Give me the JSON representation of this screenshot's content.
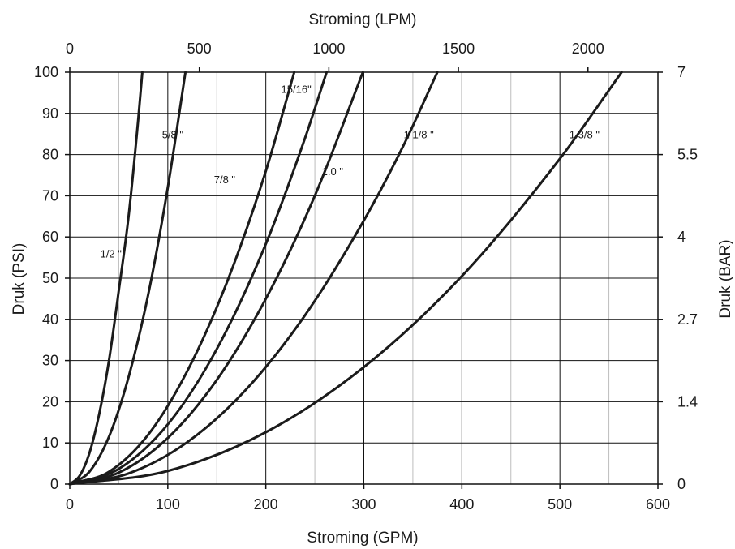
{
  "chart_data": {
    "type": "line",
    "title": "",
    "xlabel": "Stroming (GPM)",
    "ylabel": "Druk (PSI)",
    "x2label": "Stroming (LPM)",
    "y2label": "Druk (BAR)",
    "xlim": [
      0,
      600
    ],
    "ylim": [
      0,
      100
    ],
    "x2lim": [
      0,
      2270
    ],
    "x_ticks": [
      "0",
      "100",
      "200",
      "300",
      "400",
      "500",
      "600"
    ],
    "y_ticks": [
      "0",
      "10",
      "20",
      "30",
      "40",
      "50",
      "60",
      "70",
      "80",
      "90",
      "100"
    ],
    "x2_ticks": [
      {
        "value": 0,
        "label": "0"
      },
      {
        "value": 500,
        "label": "500"
      },
      {
        "value": 1000,
        "label": "1000"
      },
      {
        "value": 1500,
        "label": "1500"
      },
      {
        "value": 2000,
        "label": "2000"
      }
    ],
    "y2_ticks": [
      {
        "value": 0,
        "label": "0"
      },
      {
        "value": 20,
        "label": "1.4"
      },
      {
        "value": 40,
        "label": "2.7"
      },
      {
        "value": 60,
        "label": "4"
      },
      {
        "value": 80,
        "label": "5.5"
      },
      {
        "value": 100,
        "label": "7"
      }
    ],
    "grid": true,
    "series": [
      {
        "name": "1/2 \"",
        "x": [
          0,
          10,
          20,
          30,
          40,
          50,
          60,
          70,
          74
        ],
        "y": [
          0,
          2,
          7.5,
          17,
          30,
          47,
          65,
          89,
          100
        ],
        "label_pos": [
          42,
          55
        ]
      },
      {
        "name": "5/8 \"",
        "x": [
          0,
          20,
          40,
          60,
          80,
          100,
          118
        ],
        "y": [
          0,
          3,
          11.5,
          26,
          46,
          72,
          100
        ],
        "label_pos": [
          105,
          84
        ]
      },
      {
        "name": "7/8 \"",
        "x": [
          0,
          40,
          80,
          120,
          160,
          200,
          229
        ],
        "y": [
          0,
          3,
          12,
          27.5,
          48.8,
          76,
          100
        ],
        "label_pos": [
          158,
          73
        ]
      },
      {
        "name": "15/16\"",
        "x": [
          0,
          50,
          100,
          150,
          200,
          240,
          262
        ],
        "y": [
          0,
          3.7,
          14.5,
          32.8,
          58.3,
          84,
          100
        ],
        "label_pos": [
          231,
          95
        ]
      },
      {
        "name": "1.0 \"",
        "x": [
          0,
          50,
          100,
          150,
          200,
          250,
          299
        ],
        "y": [
          0,
          2.8,
          11.2,
          25.3,
          45,
          70,
          100
        ],
        "label_pos": [
          268,
          75
        ]
      },
      {
        "name": "1 1/8 \"",
        "x": [
          0,
          60,
          120,
          180,
          240,
          300,
          340,
          375
        ],
        "y": [
          0,
          2.6,
          10.2,
          23,
          41,
          64,
          82,
          100
        ],
        "label_pos": [
          356,
          84
        ]
      },
      {
        "name": "1 3/8 \"",
        "x": [
          0,
          100,
          200,
          300,
          400,
          500,
          563
        ],
        "y": [
          0,
          3.2,
          12.6,
          28.4,
          50.5,
          79,
          100
        ],
        "label_pos": [
          525,
          84
        ]
      }
    ]
  }
}
